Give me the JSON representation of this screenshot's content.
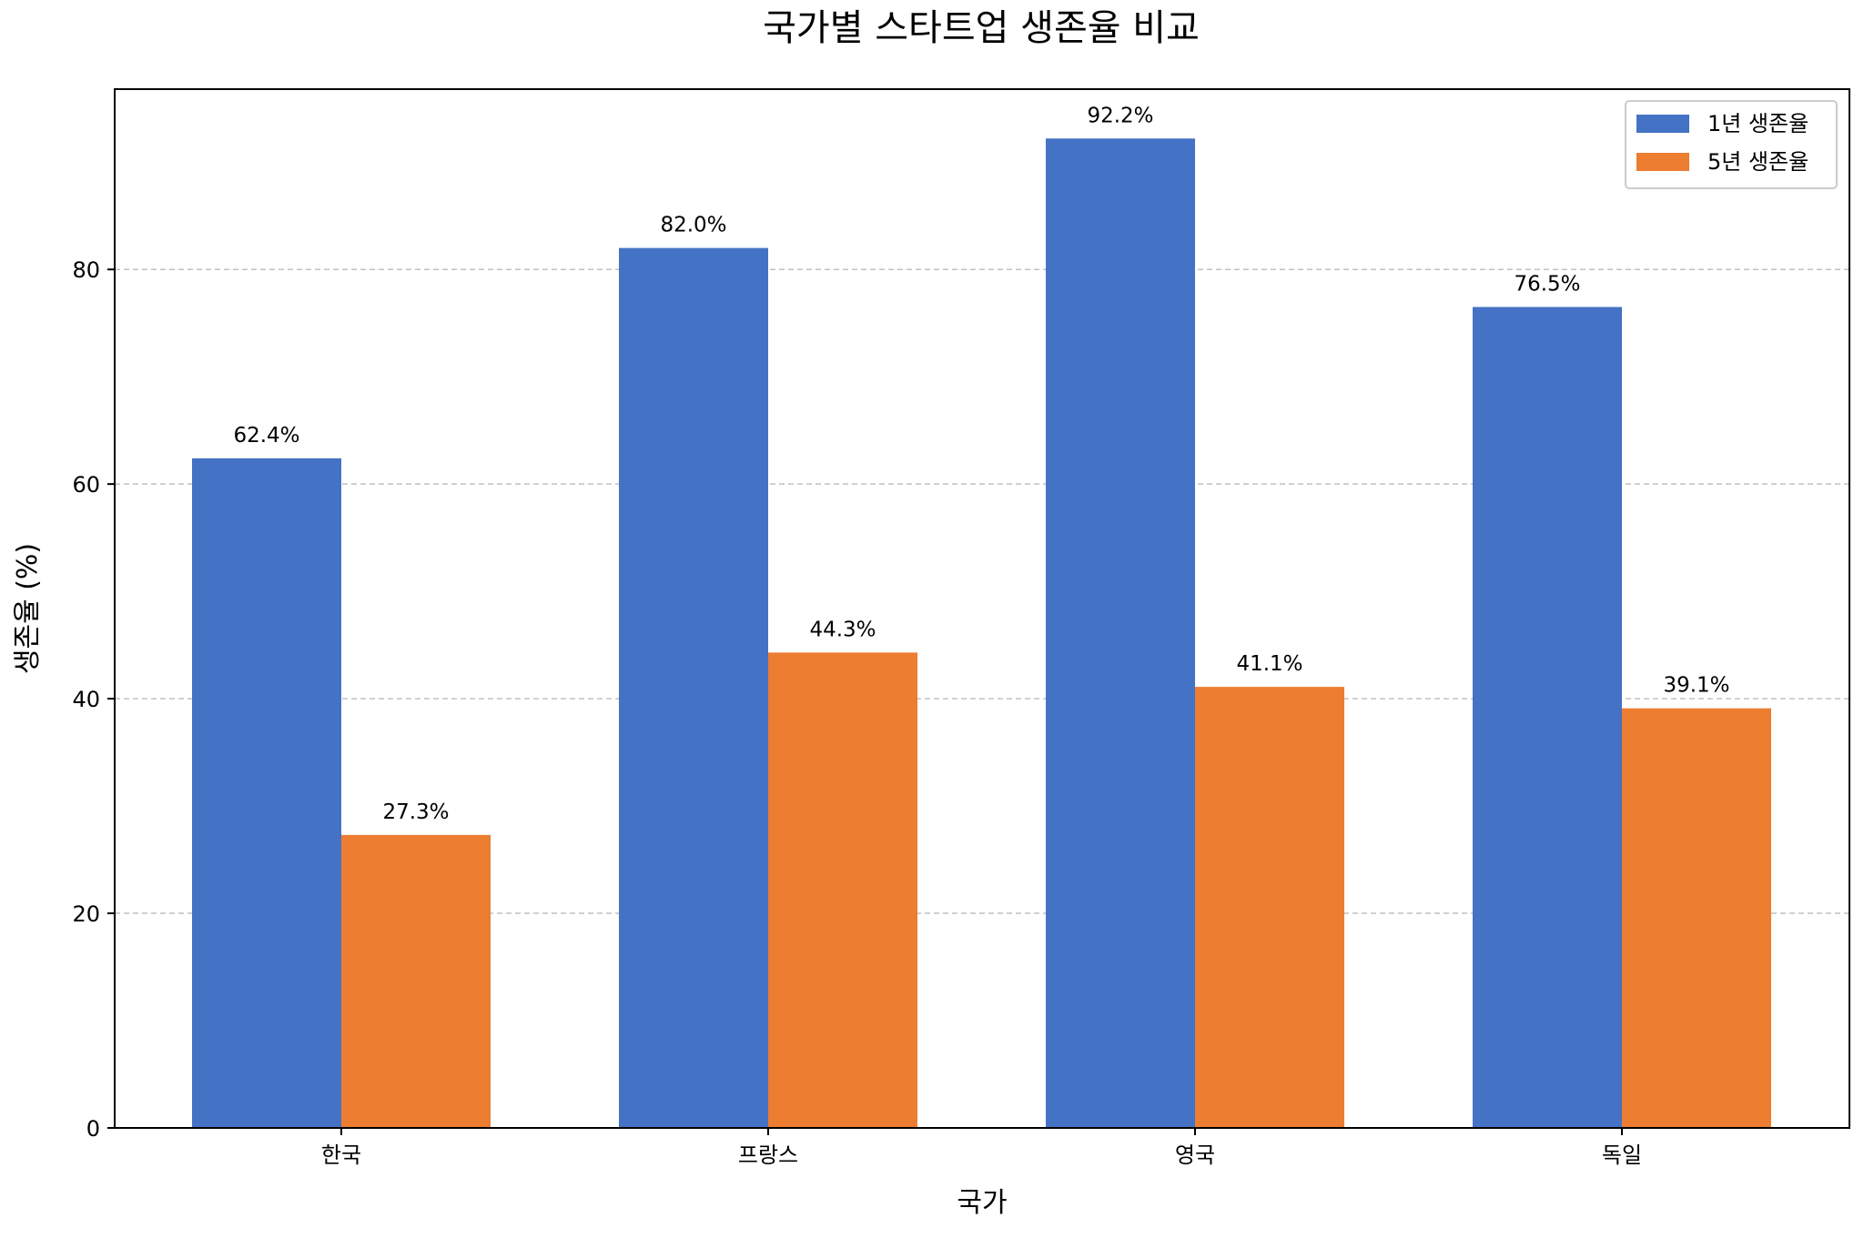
{
  "chart_data": {
    "type": "bar",
    "title": "국가별 스타트업 생존율 비교",
    "xlabel": "국가",
    "ylabel": "생존율 (%)",
    "categories": [
      "한국",
      "프랑스",
      "영국",
      "독일"
    ],
    "series": [
      {
        "name": "1년 생존율",
        "values": [
          62.4,
          82.0,
          92.2,
          76.5
        ],
        "labels": [
          "62.4%",
          "82.0%",
          "92.2%",
          "76.5%"
        ],
        "color": "#4472C4"
      },
      {
        "name": "5년 생존율",
        "values": [
          27.3,
          44.3,
          41.1,
          39.1
        ],
        "labels": [
          "27.3%",
          "44.3%",
          "41.1%",
          "39.1%"
        ],
        "color": "#ED7D31"
      }
    ],
    "ylim": [
      0,
      96.8
    ],
    "yticks": [
      0,
      20,
      40,
      60,
      80
    ],
    "ytick_labels": [
      "0",
      "20",
      "40",
      "60",
      "80"
    ],
    "grid": "y-dashed",
    "legend_position": "top-right"
  }
}
